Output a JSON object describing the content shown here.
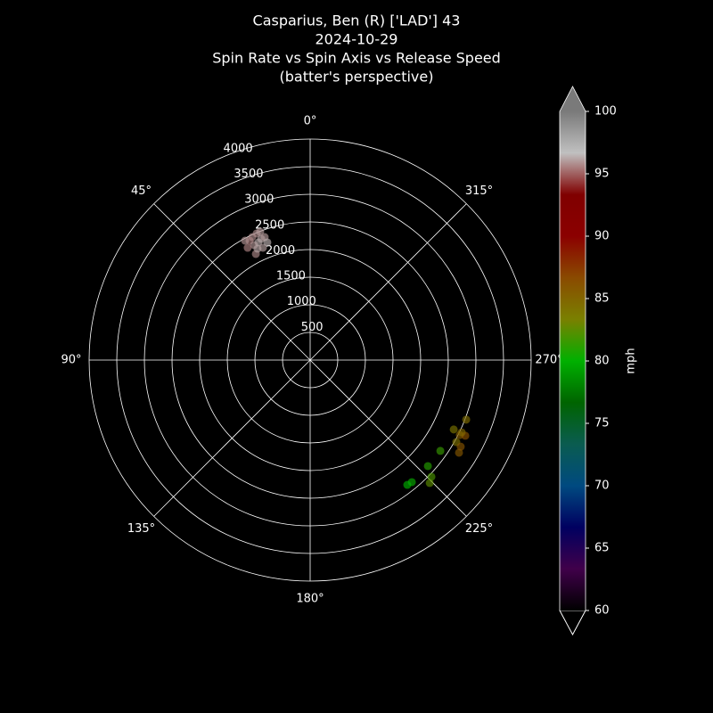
{
  "chart_data": {
    "type": "polar-scatter",
    "title_lines": [
      "Casparius, Ben (R) ['LAD'] 43",
      "2024-10-29",
      "Spin Rate vs Spin Axis vs Release Speed",
      "(batter's perspective)"
    ],
    "theta_zero": "top",
    "theta_direction": "counterclockwise",
    "rlim": [
      0,
      4000
    ],
    "rticks": [
      500,
      1000,
      1500,
      2000,
      2500,
      3000,
      3500,
      4000
    ],
    "thetaticks": [
      {
        "value": 0,
        "label": "0°"
      },
      {
        "value": 45,
        "label": "45°"
      },
      {
        "value": 90,
        "label": "90°"
      },
      {
        "value": 135,
        "label": "135°"
      },
      {
        "value": 180,
        "label": "180°"
      },
      {
        "value": 225,
        "label": "225°"
      },
      {
        "value": 270,
        "label": "270°"
      },
      {
        "value": 315,
        "label": "315°"
      }
    ],
    "grid": true,
    "points": {
      "theta": [
        22.9,
        22.0,
        26.9,
        20.3,
        26.0,
        23.7,
        29.1,
        22.8,
        27.1,
        20.0,
        25.2,
        21.3,
        28.6,
        25.3,
        249.1,
        244.2,
        243.4,
        244.0,
        240.7,
        240.1,
        238.1,
        235.1,
        228.0,
        226.1,
        224.2,
        219.8,
        217.9,
        244.5
      ],
      "r": [
        2487,
        2366,
        2424,
        2373,
        2316,
        2326,
        2325,
        2205,
        2157,
        2266,
        2460,
        2492,
        2461,
        2229,
        3023,
        2886,
        3030,
        3124,
        3033,
        3143,
        3173,
        2873,
        2867,
        3046,
        3103,
        2875,
        2862,
        3038
      ],
      "speed": [
        95.8,
        96.2,
        95.5,
        96.0,
        95.9,
        96.3,
        95.6,
        96.1,
        95.7,
        96.4,
        95.8,
        96.0,
        95.9,
        96.2,
        84.5,
        84.0,
        85.5,
        86.3,
        84.2,
        86.0,
        85.8,
        81.5,
        81.0,
        82.0,
        82.5,
        80.2,
        80.0,
        84.8
      ]
    },
    "marker_alpha": 0.65,
    "colorbar": {
      "label": "mph",
      "clim": [
        60,
        100
      ],
      "ticks": [
        60,
        65,
        70,
        75,
        80,
        85,
        90,
        95,
        100
      ],
      "colormap": [
        "#000000",
        "#40004a",
        "#000060",
        "#004a80",
        "#0a5c50",
        "#006400",
        "#00b000",
        "#7a8000",
        "#8a4a00",
        "#8b0000",
        "#800000",
        "#c0c0c0",
        "#7a7a7a"
      ]
    }
  }
}
